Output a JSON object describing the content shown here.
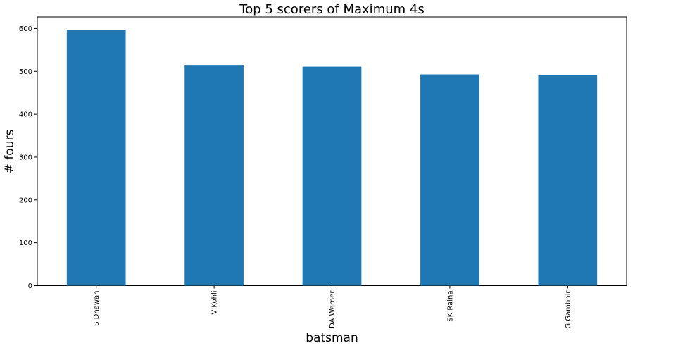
{
  "chart_data": {
    "type": "bar",
    "title": "Top 5 scorers of Maximum 4s",
    "xlabel": "batsman",
    "ylabel": "# fours",
    "categories": [
      "S Dhawan",
      "V Kohli",
      "DA Warner",
      "SK Raina",
      "G Gambhir"
    ],
    "values": [
      597,
      515,
      511,
      493,
      491
    ],
    "ylim": [
      0,
      627
    ],
    "yticks": [
      0,
      100,
      200,
      300,
      400,
      500,
      600
    ],
    "bar_color": "#1f77b4",
    "grid": false,
    "legend": "none"
  }
}
